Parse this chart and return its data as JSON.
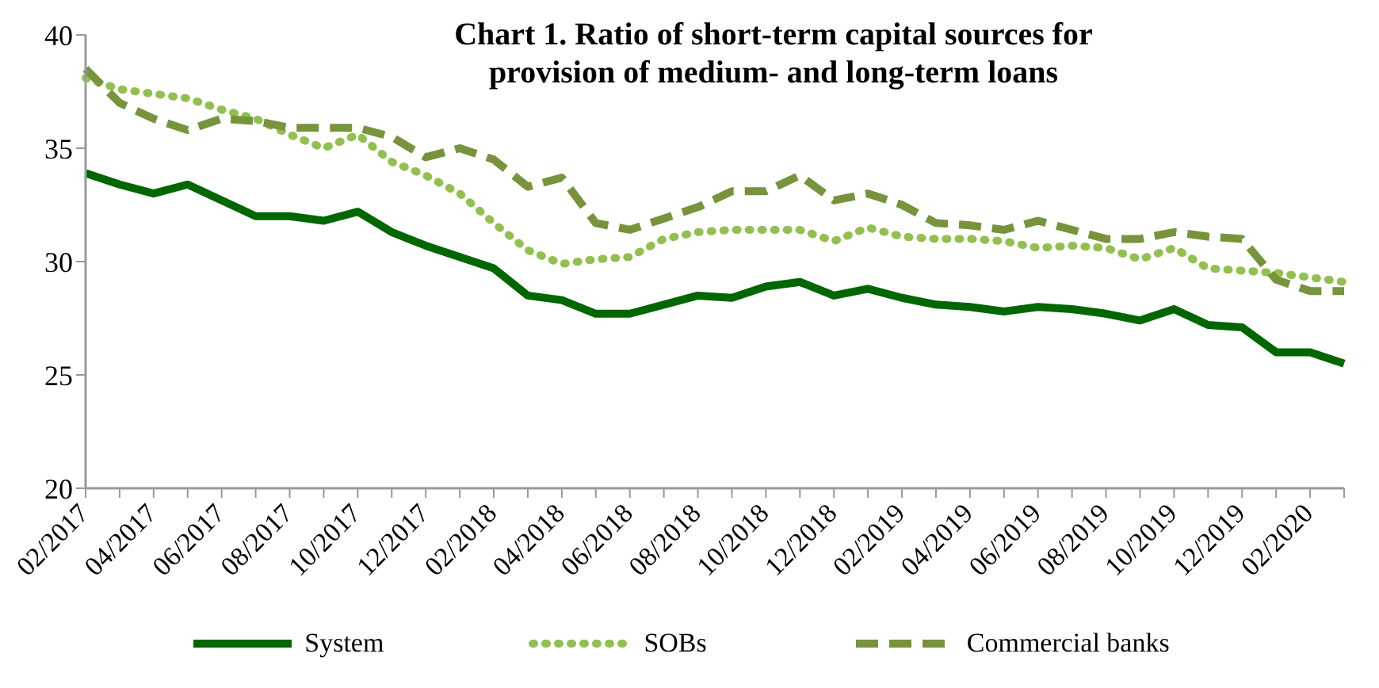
{
  "chart_data": {
    "type": "line",
    "title": "Chart 1. Ratio of short-term capital sources for provision of medium- and long-term loans",
    "categories": [
      "02/2017",
      null,
      "04/2017",
      null,
      "06/2017",
      null,
      "08/2017",
      null,
      "10/2017",
      null,
      "12/2017",
      null,
      "02/2018",
      null,
      "04/2018",
      null,
      "06/2018",
      null,
      "08/2018",
      null,
      "10/2018",
      null,
      "12/2018",
      null,
      "02/2019",
      null,
      "04/2019",
      null,
      "06/2019",
      null,
      "08/2019",
      null,
      "10/2019",
      null,
      "12/2019",
      null,
      "02/2020",
      null
    ],
    "series": [
      {
        "name": "System",
        "color": "#006600",
        "line_style": "solid",
        "values": [
          33.9,
          33.4,
          33.0,
          33.4,
          32.7,
          32.0,
          32.0,
          31.8,
          32.2,
          31.3,
          30.7,
          30.2,
          29.7,
          28.5,
          28.3,
          27.7,
          27.7,
          28.1,
          28.5,
          28.4,
          28.9,
          29.1,
          28.5,
          28.8,
          28.4,
          28.1,
          28.0,
          27.8,
          28.0,
          27.9,
          27.7,
          27.4,
          27.9,
          27.2,
          27.1,
          26.0,
          26.0,
          25.5
        ]
      },
      {
        "name": "SOBs",
        "color": "#92c050",
        "line_style": "dotted",
        "values": [
          38.1,
          37.6,
          37.4,
          37.2,
          36.7,
          36.3,
          35.6,
          35.0,
          35.6,
          34.4,
          33.8,
          33.0,
          31.7,
          30.5,
          29.9,
          30.1,
          30.2,
          31.0,
          31.3,
          31.4,
          31.4,
          31.4,
          30.9,
          31.5,
          31.1,
          31.0,
          31.0,
          30.9,
          30.6,
          30.7,
          30.6,
          30.1,
          30.6,
          29.7,
          29.6,
          29.5,
          29.3,
          29.1
        ]
      },
      {
        "name": "Commercial banks",
        "color": "#77933c",
        "line_style": "dashed",
        "values": [
          38.5,
          37.0,
          36.3,
          35.8,
          36.3,
          36.2,
          35.9,
          35.9,
          35.9,
          35.5,
          34.6,
          35.0,
          34.5,
          33.3,
          33.7,
          31.7,
          31.4,
          31.9,
          32.4,
          33.1,
          33.1,
          33.8,
          32.7,
          33.0,
          32.5,
          31.7,
          31.6,
          31.4,
          31.8,
          31.4,
          31.0,
          31.0,
          31.3,
          31.1,
          31.0,
          29.2,
          28.7,
          28.7
        ]
      }
    ],
    "ylim": [
      20,
      40
    ],
    "yticks": [
      20,
      25,
      30,
      35,
      40
    ],
    "grid": false,
    "legend": "bottom",
    "marker": "none"
  }
}
